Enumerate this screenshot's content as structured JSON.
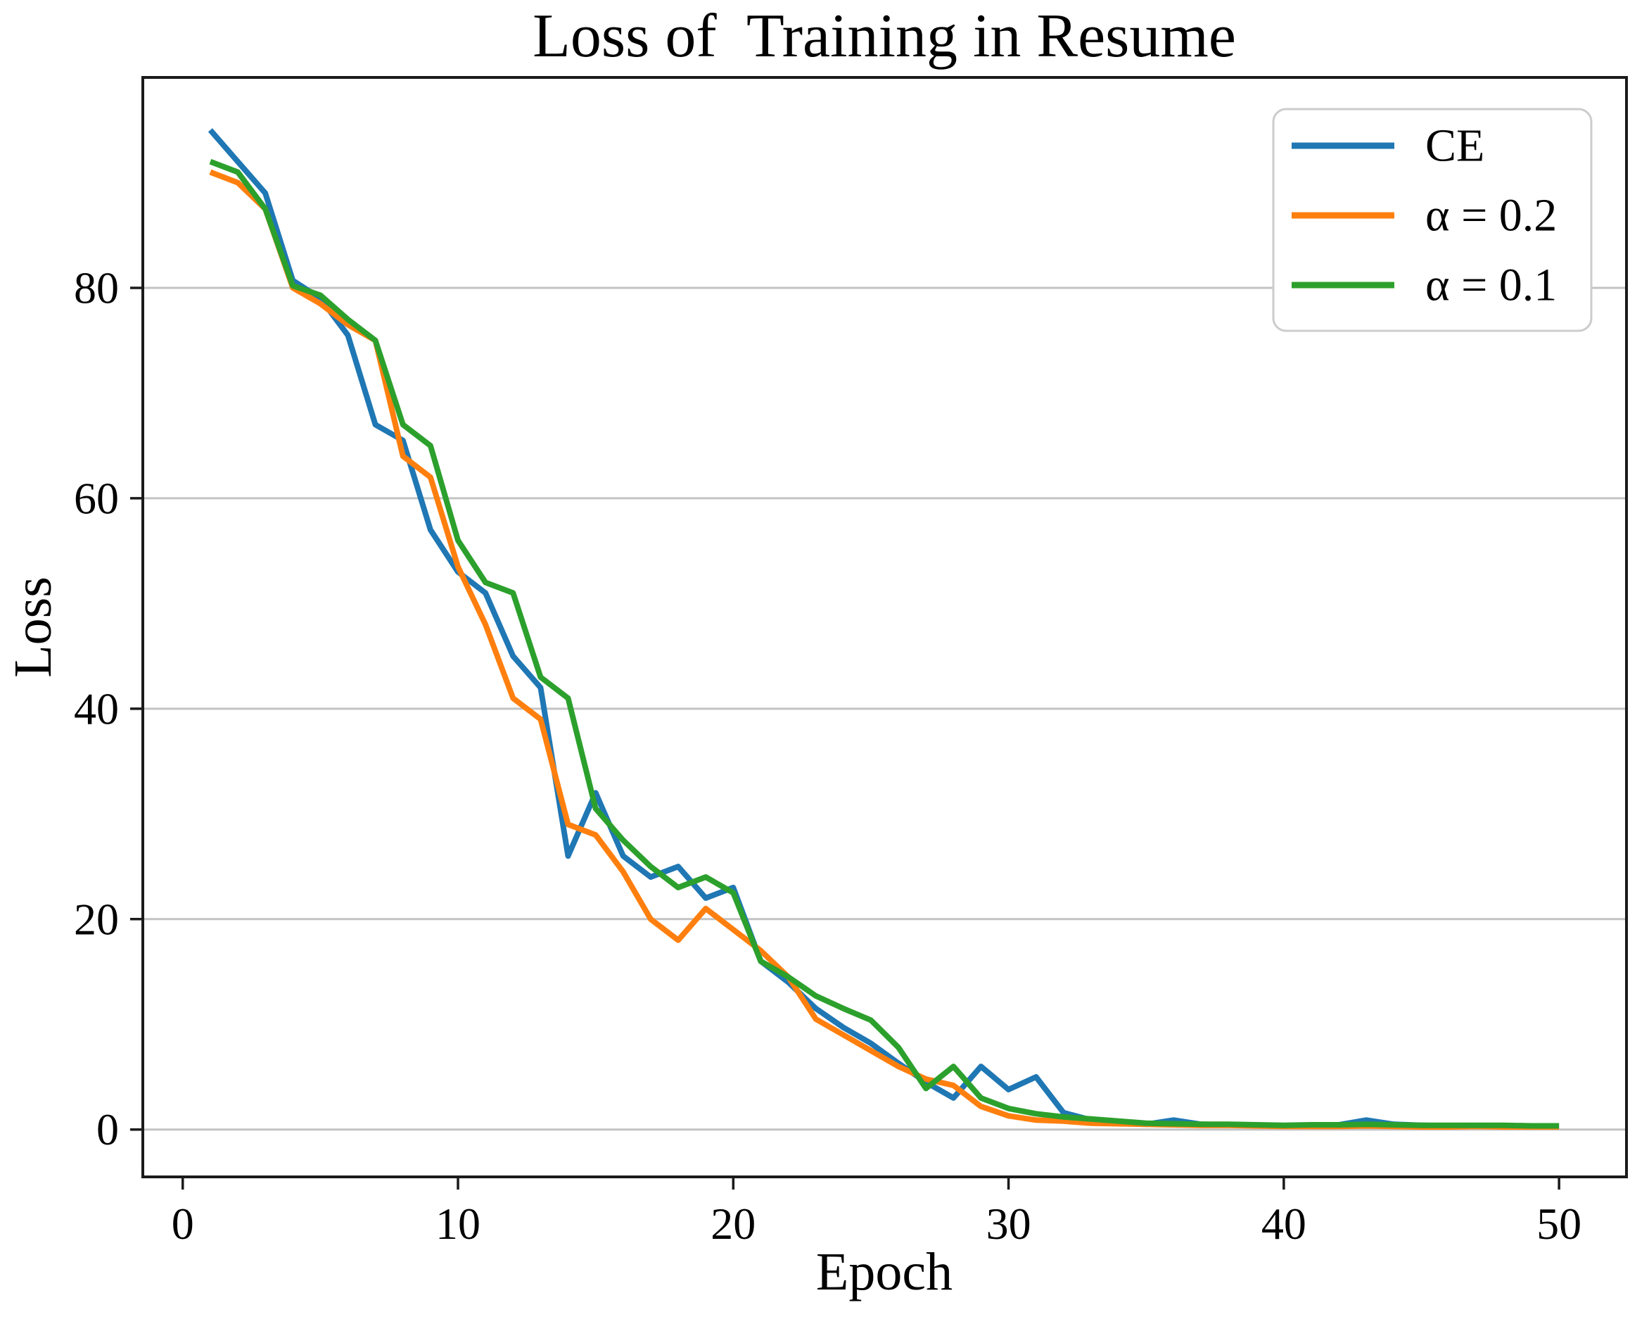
{
  "figure": {
    "background": "#ffffff"
  },
  "chart_data": {
    "type": "line",
    "title": "Loss of  Training in Resume",
    "xlabel": "Epoch",
    "ylabel": "Loss",
    "xlim": [
      -1.45,
      52.45
    ],
    "ylim": [
      -4.5,
      100
    ],
    "xticks": [
      0,
      10,
      20,
      30,
      40,
      50
    ],
    "yticks": [
      0,
      20,
      40,
      60,
      80
    ],
    "grid": "horizontal",
    "legend_position": "upper right",
    "x": [
      1,
      2,
      3,
      4,
      5,
      6,
      7,
      8,
      9,
      10,
      11,
      12,
      13,
      14,
      15,
      16,
      17,
      18,
      19,
      20,
      21,
      22,
      23,
      24,
      25,
      26,
      27,
      28,
      29,
      30,
      31,
      32,
      33,
      34,
      35,
      36,
      37,
      38,
      39,
      40,
      41,
      42,
      43,
      44,
      45,
      46,
      47,
      48,
      49,
      50
    ],
    "series": [
      {
        "name": "CE",
        "color": "#1f77b4",
        "values": [
          95,
          92,
          89,
          80.7,
          79,
          75.5,
          67,
          65.5,
          57,
          53,
          51,
          45,
          42,
          26,
          32,
          26,
          24,
          25,
          22,
          23,
          16,
          14,
          11.5,
          9.7,
          8.2,
          6.3,
          4.5,
          3,
          6,
          3.8,
          5,
          1.6,
          0.9,
          0.7,
          0.5,
          0.9,
          0.5,
          0.45,
          0.4,
          0.35,
          0.4,
          0.45,
          0.9,
          0.5,
          0.4,
          0.35,
          0.35,
          0.3,
          0.3,
          0.3
        ]
      },
      {
        "name": "α = 0.2",
        "color": "#ff7f0e",
        "values": [
          91,
          90,
          87.5,
          80,
          78.5,
          76.5,
          75,
          64,
          62,
          53.5,
          48,
          41,
          39,
          29,
          28,
          24.5,
          20,
          18,
          21,
          19,
          17,
          14.5,
          10.5,
          9,
          7.5,
          6,
          4.8,
          4.2,
          2.2,
          1.3,
          0.9,
          0.8,
          0.6,
          0.55,
          0.5,
          0.45,
          0.4,
          0.4,
          0.35,
          0.3,
          0.3,
          0.3,
          0.35,
          0.3,
          0.25,
          0.25,
          0.3,
          0.25,
          0.25,
          0.25
        ]
      },
      {
        "name": "α = 0.1",
        "color": "#2ca02c",
        "values": [
          92,
          91,
          87.5,
          80.2,
          79.3,
          77,
          75,
          67,
          65,
          56,
          52,
          51,
          43,
          41,
          30.5,
          27.5,
          25,
          23,
          24,
          22.5,
          16,
          14.5,
          12.7,
          11.5,
          10.4,
          7.8,
          3.9,
          6,
          3,
          2,
          1.5,
          1.2,
          1.0,
          0.8,
          0.6,
          0.55,
          0.5,
          0.5,
          0.45,
          0.4,
          0.45,
          0.45,
          0.5,
          0.45,
          0.4,
          0.4,
          0.4,
          0.4,
          0.35,
          0.35
        ]
      }
    ],
    "colors": {
      "grid": "#c3c3c3",
      "spine": "#1a1a1a",
      "text": "#000000",
      "legend_border": "#cccccc"
    }
  }
}
